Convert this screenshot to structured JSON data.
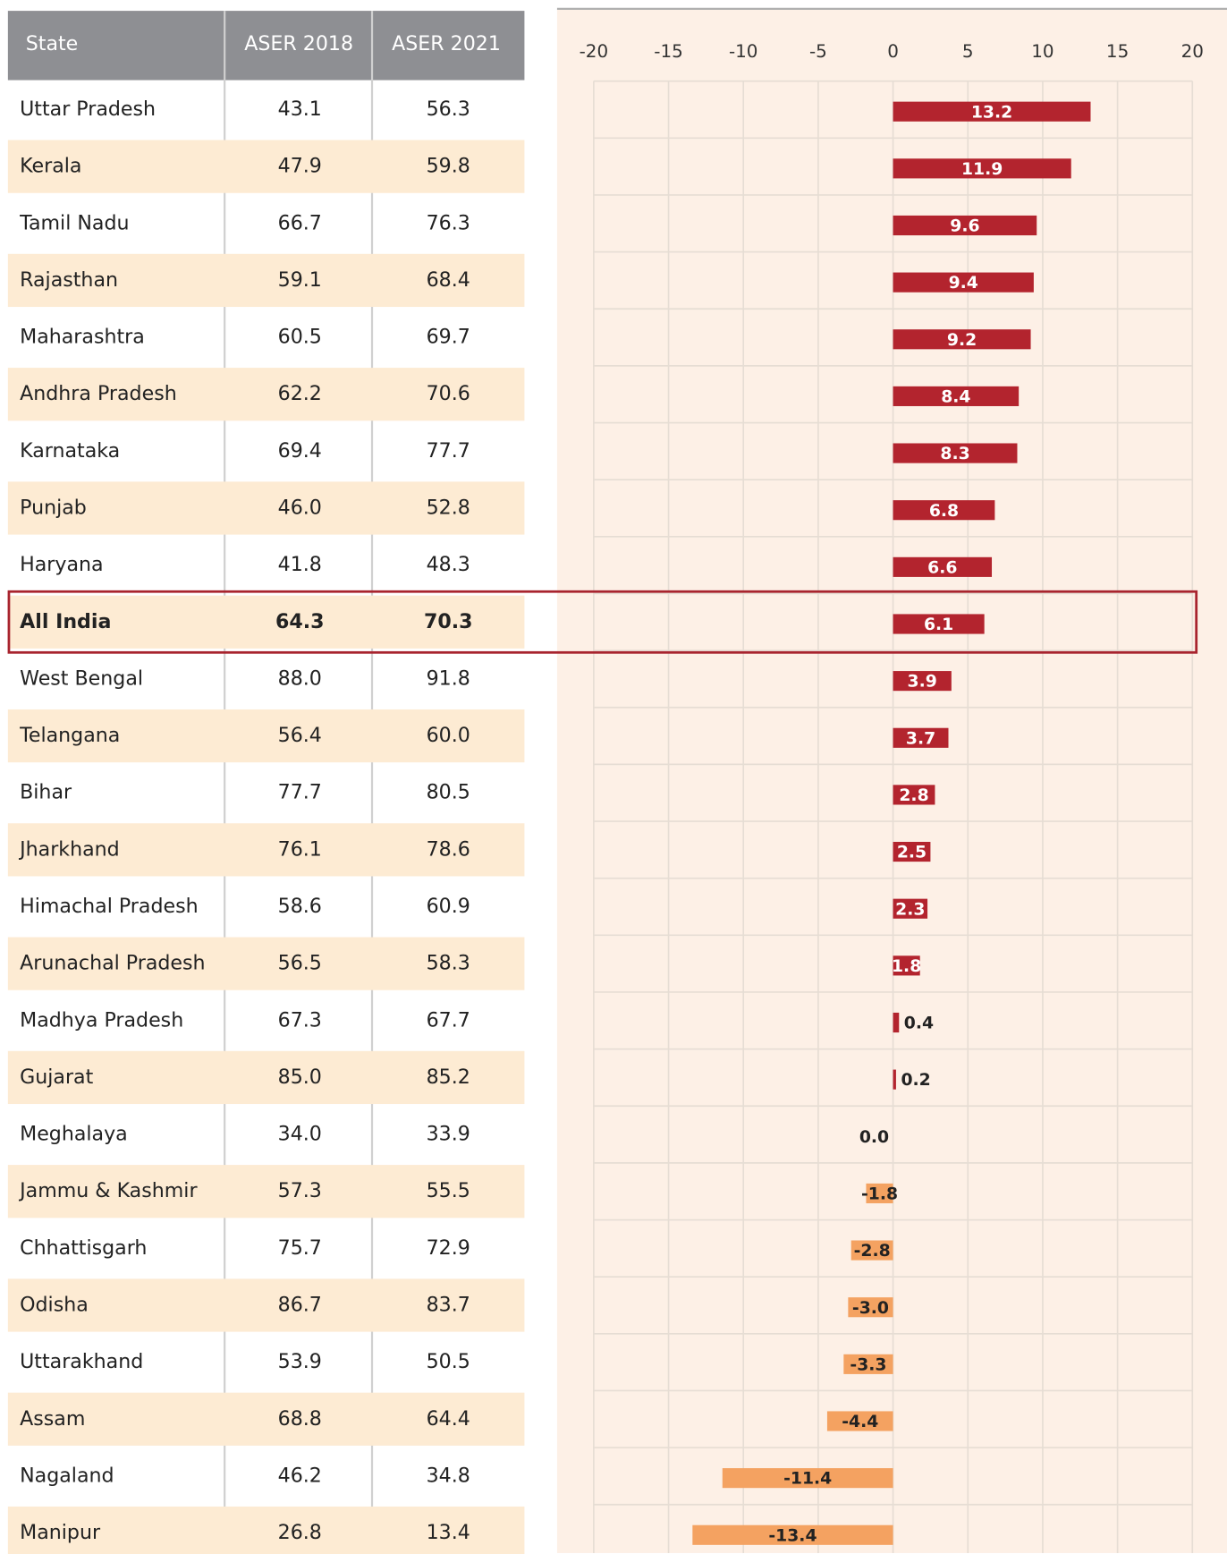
{
  "table": {
    "header": [
      "State",
      "ASER 2018",
      "ASER 2021"
    ],
    "rows": [
      [
        "Uttar Pradesh",
        "43.1",
        "56.3"
      ],
      [
        "Kerala",
        "47.9",
        "59.8"
      ],
      [
        "Tamil Nadu",
        "66.7",
        "76.3"
      ],
      [
        "Rajasthan",
        "59.1",
        "68.4"
      ],
      [
        "Maharashtra",
        "60.5",
        "69.7"
      ],
      [
        "Andhra Pradesh",
        "62.2",
        "70.6"
      ],
      [
        "Karnataka",
        "69.4",
        "77.7"
      ],
      [
        "Punjab",
        "46.0",
        "52.8"
      ],
      [
        "Haryana",
        "41.8",
        "48.3"
      ],
      [
        "All India",
        "64.3",
        "70.3"
      ],
      [
        "West Bengal",
        "88.0",
        "91.8"
      ],
      [
        "Telangana",
        "56.4",
        "60.0"
      ],
      [
        "Bihar",
        "77.7",
        "80.5"
      ],
      [
        "Jharkhand",
        "76.1",
        "78.6"
      ],
      [
        "Himachal Pradesh",
        "58.6",
        "60.9"
      ],
      [
        "Arunachal Pradesh",
        "56.5",
        "58.3"
      ],
      [
        "Madhya Pradesh",
        "67.3",
        "67.7"
      ],
      [
        "Gujarat",
        "85.0",
        "85.2"
      ],
      [
        "Meghalaya",
        "34.0",
        "33.9"
      ],
      [
        "Jammu & Kashmir",
        "57.3",
        "55.5"
      ],
      [
        "Chhattisgarh",
        "75.7",
        "72.9"
      ],
      [
        "Odisha",
        "86.7",
        "83.7"
      ],
      [
        "Uttarakhand",
        "53.9",
        "50.5"
      ],
      [
        "Assam",
        "68.8",
        "64.4"
      ],
      [
        "Nagaland",
        "46.2",
        "34.8"
      ],
      [
        "Manipur",
        "26.8",
        "13.4"
      ]
    ],
    "highlight": 9
  },
  "chart_data": {
    "type": "bar",
    "orientation": "horizontal",
    "values": [
      13.2,
      11.9,
      9.6,
      9.4,
      9.2,
      8.4,
      8.3,
      6.8,
      6.6,
      6.1,
      3.9,
      3.7,
      2.8,
      2.5,
      2.3,
      1.8,
      0.4,
      0.2,
      0,
      -1.8,
      -2.8,
      -3.0,
      -3.3,
      -4.4,
      -11.4,
      -13.4
    ],
    "value_labels": [
      "13.2",
      "11.9",
      "9.6",
      "9.4",
      "9.2",
      "8.4",
      "8.3",
      "6.8",
      "6.6",
      "6.1",
      "3.9",
      "3.7",
      "2.8",
      "2.5",
      "2.3",
      "1.8",
      "0.4",
      "0.2",
      "0.0",
      "-1.8",
      "-2.8",
      "-3.0",
      "-3.3",
      "-4.4",
      "-11.4",
      "-13.4"
    ],
    "colors": {
      "positive": "#b3242e",
      "negative": "#f4a261"
    },
    "xlim": [
      -20,
      20
    ],
    "xticks": [
      -20,
      -15,
      -10,
      -5,
      0,
      5,
      10,
      15,
      20
    ],
    "grid": true
  }
}
